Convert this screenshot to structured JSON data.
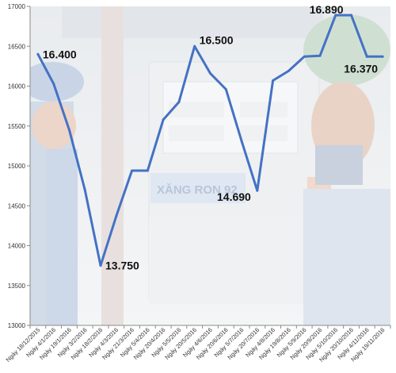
{
  "chart_data": {
    "type": "line",
    "title": "",
    "xlabel": "",
    "ylabel": "",
    "ylim": [
      13000,
      17000
    ],
    "yticks": [
      "13000",
      "13500",
      "14000",
      "14500",
      "15000",
      "15500",
      "16000",
      "16500",
      "17000"
    ],
    "grid": false,
    "legend": "none",
    "x": [
      "Ngày 18/12/2015",
      "Ngày 4/1/2016",
      "Ngày 19/1/2016",
      "Ngày 3/2/2016",
      "Ngày 18/2/2016",
      "Ngày 4/3/2016",
      "Ngày 21/3/2016",
      "Ngày 5/4/2016",
      "Ngày 20/4/2016",
      "Ngày 5/5/2016",
      "Ngày 20/5/2016",
      "Ngày 4/6/2016",
      "Ngày 20/6/2016",
      "Ngày 5/7/2016",
      "Ngày 20/7/2016",
      "Ngày 4/8/2016",
      "Ngày 19/8/2016",
      "Ngày 5/9/2016",
      "Ngày 20/9/2016",
      "Ngày 5/10/2016",
      "Ngày 20/10/2016",
      "Ngày 4/11/2016",
      "Ngày 19/11/2016"
    ],
    "series": [
      {
        "values": [
          16400,
          16030,
          15450,
          14700,
          13750,
          14370,
          14940,
          14940,
          15580,
          15800,
          16500,
          16160,
          15960,
          15310,
          14690,
          16070,
          16190,
          16370,
          16380,
          16890,
          16890,
          16370,
          16370
        ],
        "color": "#4472c4"
      }
    ],
    "annotations": [
      {
        "index": 0,
        "label": "16.400"
      },
      {
        "index": 4,
        "label": "13.750"
      },
      {
        "index": 10,
        "label": "16.500"
      },
      {
        "index": 14,
        "label": "14.690"
      },
      {
        "index": 20,
        "label": "16.890"
      },
      {
        "index": 22,
        "label": "16.370"
      }
    ],
    "background_image": "gas-station-attendants-photo",
    "background_text": "XĂNG RON 92"
  }
}
